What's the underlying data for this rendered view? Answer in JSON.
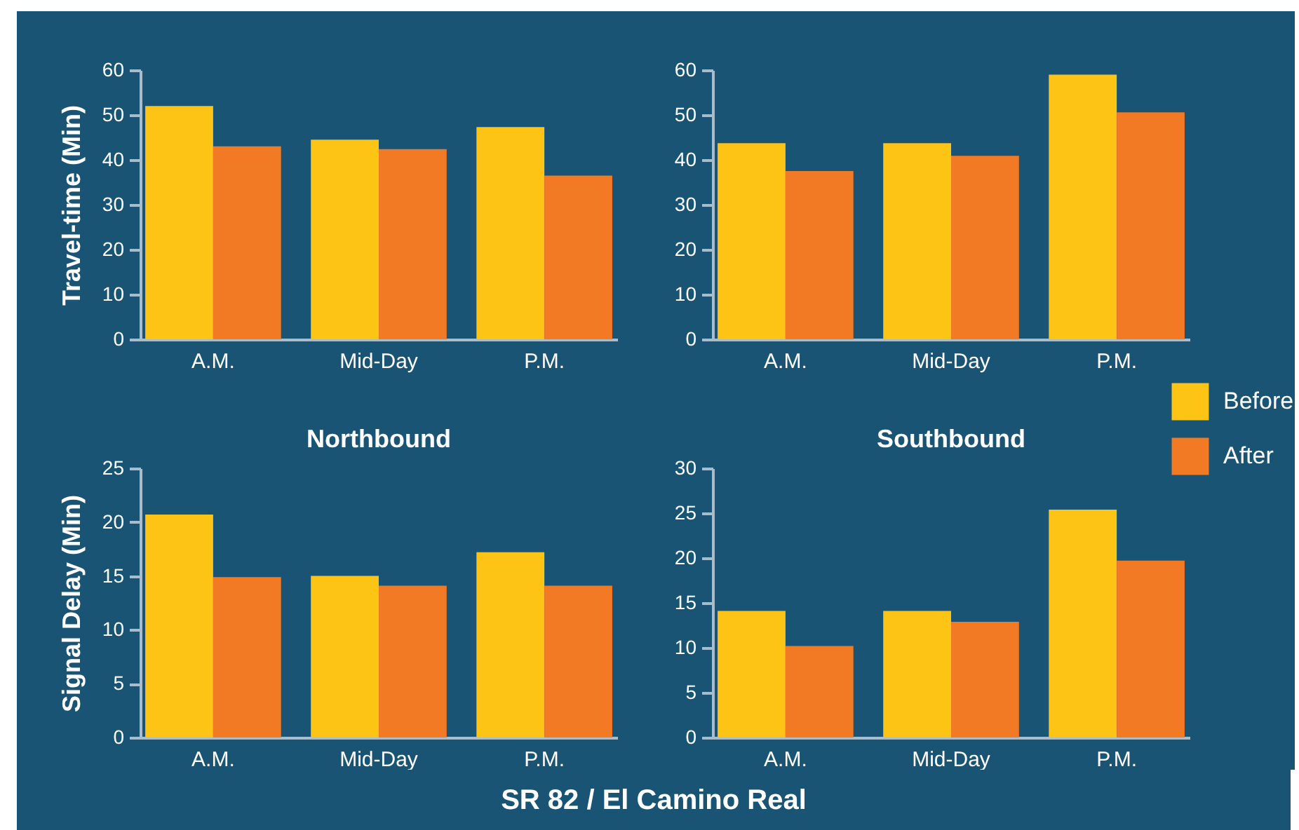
{
  "chart_data": [
    {
      "type": "bar",
      "ylabel": "Travel-time (Min)",
      "categories": [
        "A.M.",
        "Mid-Day",
        "P.M."
      ],
      "ylim": [
        0,
        60
      ],
      "yticks": [
        0,
        10,
        20,
        30,
        40,
        50,
        60
      ],
      "annotations": [
        "SR 82 / El Camino Real"
      ],
      "legend": "right",
      "series": [
        {
          "name": "Before",
          "color": "#fdc315",
          "values": [
            52,
            44.5,
            47.3
          ]
        },
        {
          "name": "After",
          "color": "#f27a24",
          "values": [
            43,
            42.4,
            36.5
          ]
        }
      ]
    },
    {
      "type": "bar",
      "categories": [
        "A.M.",
        "Mid-Day",
        "P.M."
      ],
      "ylim": [
        0,
        60
      ],
      "yticks": [
        0,
        10,
        20,
        30,
        40,
        50,
        60
      ],
      "legend": "right",
      "series": [
        {
          "name": "Before",
          "color": "#fdc315",
          "values": [
            43.7,
            43.7,
            59
          ]
        },
        {
          "name": "After",
          "color": "#f27a24",
          "values": [
            37.5,
            40.9,
            50.6
          ]
        }
      ]
    },
    {
      "type": "bar",
      "title": "Northbound",
      "ylabel": "Signal Delay (Min)",
      "categories": [
        "A.M.",
        "Mid-Day",
        "P.M."
      ],
      "ylim": [
        0,
        25
      ],
      "yticks": [
        0,
        5,
        10,
        15,
        20,
        25
      ],
      "legend": "right",
      "series": [
        {
          "name": "Before",
          "color": "#fdc315",
          "values": [
            20.7,
            15,
            17.2
          ]
        },
        {
          "name": "After",
          "color": "#f27a24",
          "values": [
            14.9,
            14.1,
            14.1
          ]
        }
      ]
    },
    {
      "type": "bar",
      "title": "Southbound",
      "categories": [
        "A.M.",
        "Mid-Day",
        "P.M."
      ],
      "ylim": [
        0,
        30
      ],
      "yticks": [
        0,
        5,
        10,
        15,
        20,
        25,
        30
      ],
      "legend": "right",
      "series": [
        {
          "name": "Before",
          "color": "#fdc315",
          "values": [
            14.1,
            14.1,
            25.4
          ]
        },
        {
          "name": "After",
          "color": "#f27a24",
          "values": [
            10.2,
            12.9,
            19.7
          ]
        }
      ]
    }
  ]
}
